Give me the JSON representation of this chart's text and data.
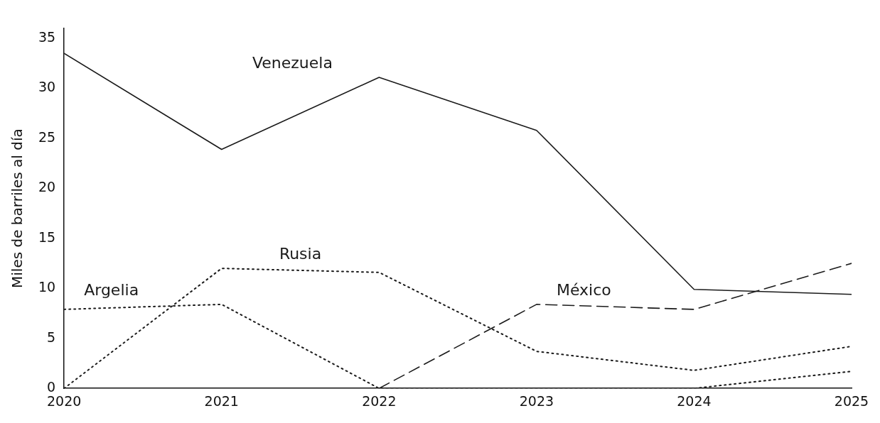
{
  "chart_data": {
    "type": "line",
    "ylabel": "Miles de barriles al día",
    "x": [
      2020,
      2021,
      2022,
      2023,
      2024,
      2025
    ],
    "xlim": [
      2020,
      2025
    ],
    "xticks": [
      2020,
      2021,
      2022,
      2023,
      2024,
      2025
    ],
    "ylim": [
      0,
      36
    ],
    "yticks": [
      0,
      5,
      10,
      15,
      20,
      25,
      30,
      35
    ],
    "grid": false,
    "legend": false,
    "marker": "none",
    "series": [
      {
        "name": "Venezuela",
        "color": "#1a1a1a",
        "line_style": "solid",
        "values": [
          33.5,
          23.9,
          31.1,
          25.8,
          9.9,
          9.4
        ]
      },
      {
        "name": "Rusia",
        "color": "#1a1a1a",
        "line_style": "dotted",
        "values": [
          0,
          12.0,
          11.6,
          3.7,
          1.8,
          4.2
        ]
      },
      {
        "name": "Argelia",
        "color": "#1a1a1a",
        "line_style": "dotted",
        "values": [
          7.9,
          8.4,
          0,
          0,
          0,
          1.7
        ]
      },
      {
        "name": "México",
        "color": "#1a1a1a",
        "line_style": "dashed",
        "values": [
          null,
          null,
          0,
          8.4,
          7.9,
          12.5
        ]
      }
    ]
  }
}
